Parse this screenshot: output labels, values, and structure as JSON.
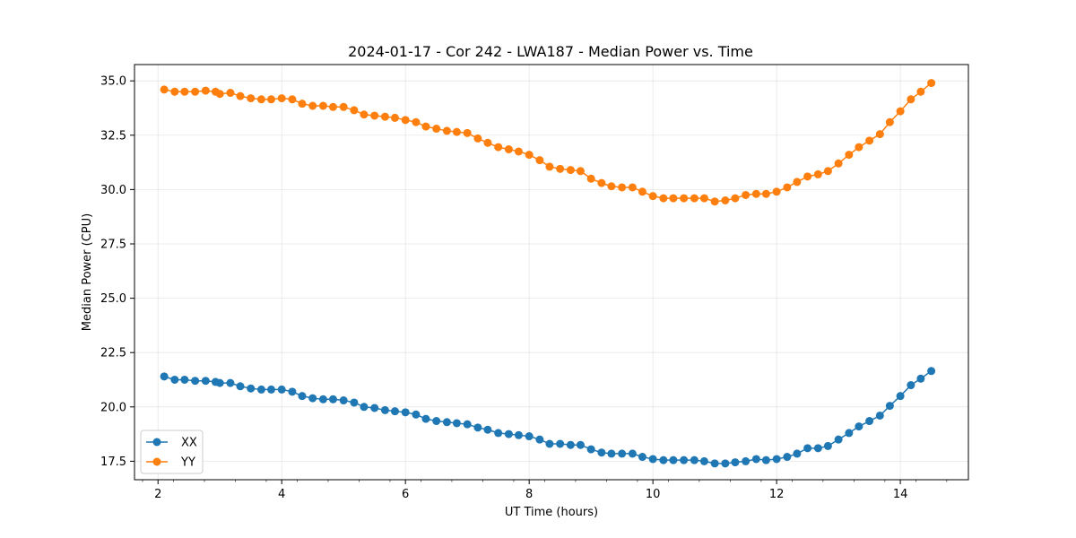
{
  "chart_data": {
    "type": "line",
    "title": "2024-01-17 - Cor 242 - LWA187 - Median Power vs. Time",
    "xlabel": "UT Time (hours)",
    "ylabel": "Median Power (CPU)",
    "xlim": [
      1.62,
      15.1
    ],
    "ylim": [
      16.65,
      35.75
    ],
    "xticks": [
      2,
      4,
      6,
      8,
      10,
      12,
      14
    ],
    "xtick_labels": [
      "2",
      "4",
      "6",
      "8",
      "10",
      "12",
      "14"
    ],
    "yticks": [
      17.5,
      20.0,
      22.5,
      25.0,
      27.5,
      30.0,
      32.5,
      35.0
    ],
    "ytick_labels": [
      "17.5",
      "20.0",
      "22.5",
      "25.0",
      "27.5",
      "30.0",
      "32.5",
      "35.0"
    ],
    "grid": true,
    "legend_position": "lower-left",
    "x": [
      2.1,
      2.27,
      2.43,
      2.6,
      2.77,
      2.93,
      3.0,
      3.17,
      3.33,
      3.5,
      3.67,
      3.83,
      4.0,
      4.17,
      4.33,
      4.5,
      4.67,
      4.83,
      5.0,
      5.17,
      5.33,
      5.5,
      5.67,
      5.83,
      6.0,
      6.17,
      6.33,
      6.5,
      6.67,
      6.83,
      7.0,
      7.17,
      7.33,
      7.5,
      7.67,
      7.83,
      8.0,
      8.17,
      8.33,
      8.5,
      8.67,
      8.83,
      9.0,
      9.17,
      9.33,
      9.5,
      9.67,
      9.83,
      10.0,
      10.17,
      10.33,
      10.5,
      10.67,
      10.83,
      11.0,
      11.17,
      11.33,
      11.5,
      11.67,
      11.83,
      12.0,
      12.17,
      12.33,
      12.5,
      12.67,
      12.83,
      13.0,
      13.17,
      13.33,
      13.5,
      13.67,
      13.83,
      14.0,
      14.17,
      14.33,
      14.5
    ],
    "series": [
      {
        "name": "XX",
        "color": "#1f77b4",
        "values": [
          21.4,
          21.25,
          21.25,
          21.2,
          21.2,
          21.15,
          21.1,
          21.1,
          20.95,
          20.85,
          20.8,
          20.8,
          20.8,
          20.7,
          20.5,
          20.4,
          20.35,
          20.35,
          20.3,
          20.2,
          20.0,
          19.95,
          19.85,
          19.8,
          19.75,
          19.65,
          19.45,
          19.35,
          19.3,
          19.25,
          19.2,
          19.05,
          18.95,
          18.8,
          18.75,
          18.7,
          18.65,
          18.5,
          18.3,
          18.3,
          18.25,
          18.25,
          18.05,
          17.9,
          17.85,
          17.85,
          17.85,
          17.7,
          17.6,
          17.55,
          17.55,
          17.55,
          17.55,
          17.5,
          17.4,
          17.4,
          17.45,
          17.5,
          17.6,
          17.55,
          17.6,
          17.7,
          17.85,
          18.1,
          18.1,
          18.2,
          18.5,
          18.8,
          19.1,
          19.35,
          19.6,
          20.05,
          20.5,
          21.0,
          21.3,
          21.65
        ]
      },
      {
        "name": "YY",
        "color": "#ff7f0e",
        "values": [
          34.6,
          34.5,
          34.5,
          34.5,
          34.55,
          34.5,
          34.4,
          34.45,
          34.3,
          34.2,
          34.15,
          34.15,
          34.2,
          34.15,
          33.95,
          33.85,
          33.85,
          33.8,
          33.8,
          33.65,
          33.45,
          33.4,
          33.35,
          33.3,
          33.2,
          33.1,
          32.9,
          32.8,
          32.7,
          32.65,
          32.6,
          32.35,
          32.15,
          31.95,
          31.85,
          31.75,
          31.6,
          31.35,
          31.05,
          30.95,
          30.9,
          30.85,
          30.5,
          30.3,
          30.15,
          30.1,
          30.1,
          29.9,
          29.7,
          29.6,
          29.6,
          29.6,
          29.6,
          29.6,
          29.45,
          29.5,
          29.6,
          29.75,
          29.8,
          29.8,
          29.9,
          30.1,
          30.35,
          30.6,
          30.7,
          30.85,
          31.2,
          31.6,
          31.95,
          32.25,
          32.55,
          33.1,
          33.6,
          34.15,
          34.5,
          34.9
        ]
      }
    ]
  }
}
